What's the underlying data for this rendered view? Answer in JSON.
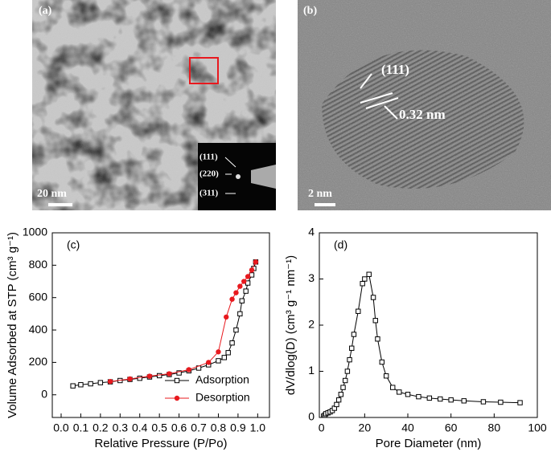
{
  "images": [
    {
      "label": "(a)",
      "scale_bar": "20 nm",
      "inset_labels": [
        "(111)",
        "(220)",
        "(311)"
      ]
    },
    {
      "label": "(b)",
      "plane": "(111)",
      "spacing": "0.32 nm",
      "scale_bar": "2 nm"
    }
  ],
  "chart_data": [
    {
      "type": "line",
      "panel": "(c)",
      "xlabel": "Relative Pressure (P/Po)",
      "ylabel": "Volume Adsorbed at STP (cm³ g⁻¹)",
      "xlim": [
        -0.045,
        1.06
      ],
      "ylim": [
        -140,
        1000
      ],
      "xticks": [
        {
          "value": 0,
          "label": "0.0"
        },
        0.1,
        0.2,
        0.3,
        0.4,
        0.5,
        0.6,
        0.7,
        0.8,
        0.9,
        {
          "value": 1,
          "label": "1.0"
        }
      ],
      "yticks": [
        0,
        200,
        400,
        600,
        800,
        1000
      ],
      "legend": "lower right",
      "series": [
        {
          "name": "Adsorption",
          "color": "#000000",
          "marker": "square-open",
          "x": [
            0.06,
            0.1,
            0.15,
            0.2,
            0.25,
            0.3,
            0.35,
            0.4,
            0.45,
            0.5,
            0.55,
            0.6,
            0.65,
            0.7,
            0.75,
            0.8,
            0.83,
            0.85,
            0.87,
            0.89,
            0.91,
            0.92,
            0.94,
            0.95,
            0.97,
            0.98,
            0.99
          ],
          "values": [
            55,
            62,
            68,
            75,
            80,
            88,
            95,
            102,
            110,
            118,
            125,
            135,
            148,
            165,
            185,
            210,
            230,
            260,
            320,
            400,
            500,
            580,
            640,
            690,
            740,
            780,
            820
          ]
        },
        {
          "name": "Desorption",
          "color": "#e8191e",
          "marker": "circle-filled",
          "x": [
            0.25,
            0.35,
            0.45,
            0.55,
            0.65,
            0.75,
            0.8,
            0.84,
            0.87,
            0.89,
            0.91,
            0.93,
            0.95,
            0.97,
            0.99
          ],
          "values": [
            82,
            98,
            115,
            130,
            155,
            200,
            265,
            480,
            590,
            630,
            670,
            700,
            730,
            770,
            820
          ]
        }
      ]
    },
    {
      "type": "line",
      "panel": "(d)",
      "xlabel": "Pore Diameter (nm)",
      "ylabel": "dV/dlog(D) (cm³ g⁻¹ nm⁻¹)",
      "xlim": [
        -1,
        100
      ],
      "ylim": [
        0,
        4
      ],
      "xticks": [
        0,
        20,
        40,
        60,
        80,
        100
      ],
      "yticks": [
        0,
        1,
        2,
        3,
        4
      ],
      "color": "#000000",
      "marker": "square-open",
      "x": [
        1.5,
        2,
        3,
        4,
        5,
        6,
        7,
        8,
        9,
        10,
        11,
        12,
        13,
        14,
        15,
        17,
        19,
        20,
        22,
        24,
        25,
        26,
        28,
        30,
        33,
        36,
        40,
        45,
        50,
        55,
        60,
        66,
        75,
        83,
        92
      ],
      "values": [
        0.05,
        0.08,
        0.1,
        0.12,
        0.15,
        0.2,
        0.28,
        0.38,
        0.5,
        0.65,
        0.8,
        1.0,
        1.25,
        1.5,
        1.8,
        2.3,
        2.9,
        3.0,
        3.1,
        2.6,
        2.1,
        1.7,
        1.2,
        0.9,
        0.65,
        0.55,
        0.5,
        0.45,
        0.42,
        0.4,
        0.38,
        0.36,
        0.34,
        0.33,
        0.32
      ]
    }
  ]
}
